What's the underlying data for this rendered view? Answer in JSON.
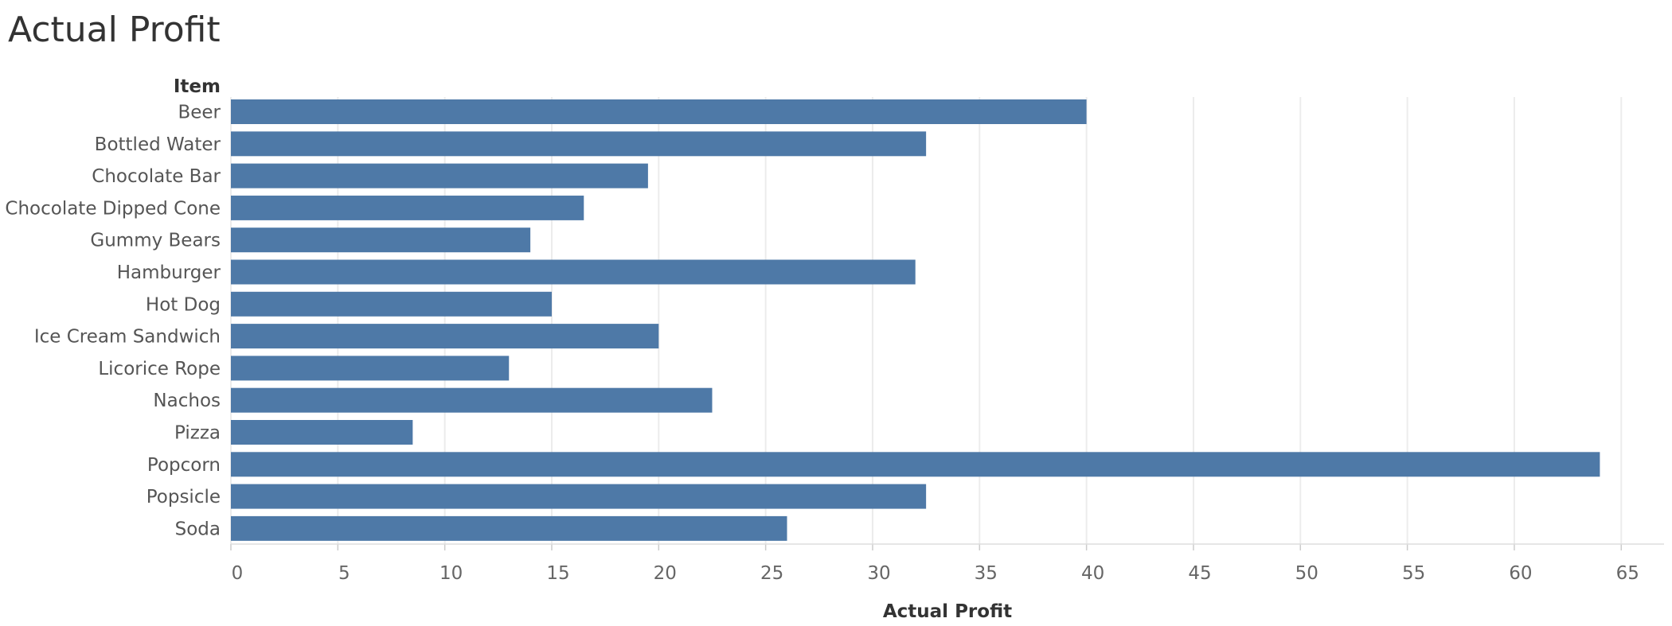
{
  "chart_data": {
    "type": "bar",
    "orientation": "horizontal",
    "title": "Actual Profit",
    "category_header": "Item",
    "xlabel": "Actual Profit",
    "categories": [
      "Beer",
      "Bottled Water",
      "Chocolate Bar",
      "Chocolate Dipped Cone",
      "Gummy Bears",
      "Hamburger",
      "Hot Dog",
      "Ice Cream Sandwich",
      "Licorice Rope",
      "Nachos",
      "Pizza",
      "Popcorn",
      "Popsicle",
      "Soda"
    ],
    "values": [
      40,
      32.5,
      19.5,
      16.5,
      14,
      32,
      15,
      20,
      13,
      22.5,
      8.5,
      64,
      32.5,
      26
    ],
    "xlim": [
      0,
      67
    ],
    "xticks": [
      0,
      5,
      10,
      15,
      20,
      25,
      30,
      35,
      40,
      45,
      50,
      55,
      60,
      65
    ],
    "grid": "vertical",
    "bar_color": "#4e79a7",
    "grid_color": "#ececec"
  }
}
